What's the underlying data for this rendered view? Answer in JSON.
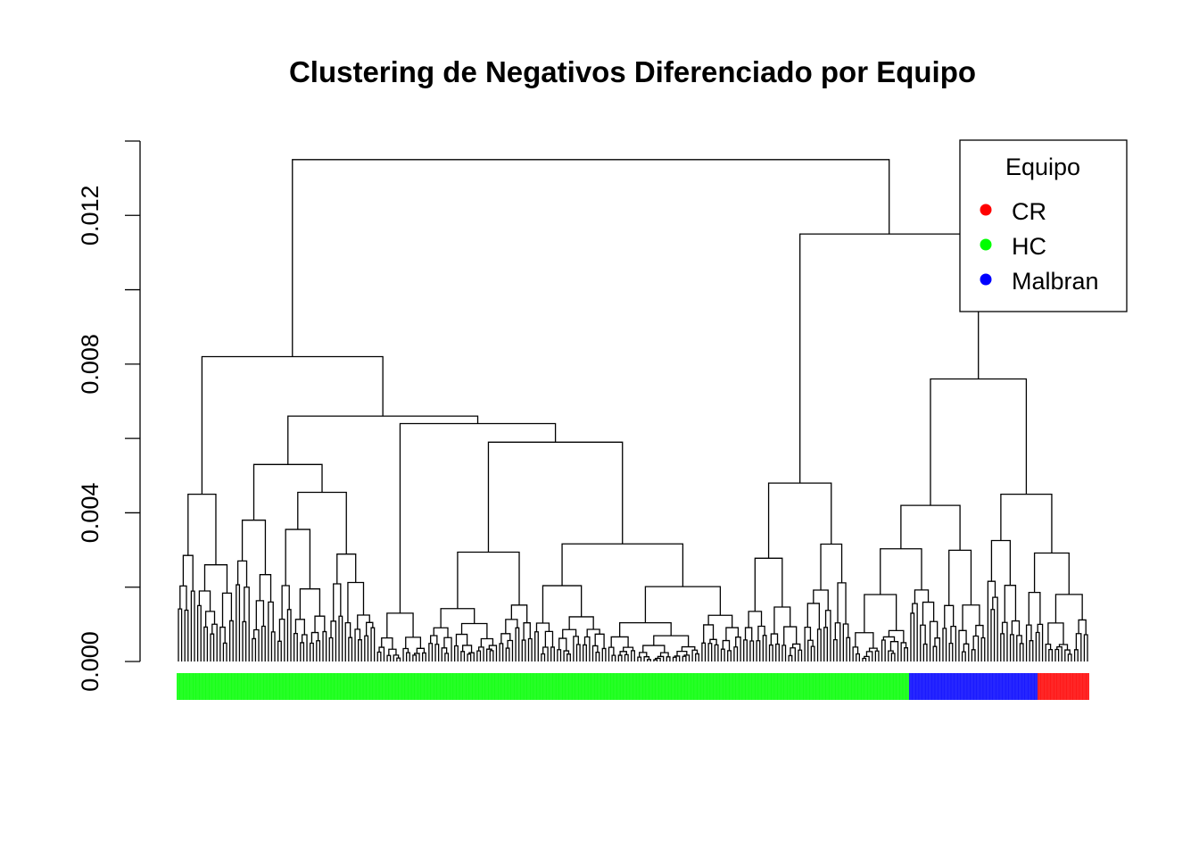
{
  "chart_data": {
    "type": "dendrogram",
    "title": "Clustering de Negativos Diferenciado por Equipo",
    "xlabel": "",
    "ylabel": "",
    "ylim": [
      0,
      0.014
    ],
    "y_ticks": [
      0.0,
      0.002,
      0.004,
      0.006,
      0.008,
      0.01,
      0.012,
      0.014
    ],
    "y_tick_labels": [
      "0.000",
      "0.004",
      "0.008",
      "0.012"
    ],
    "y_tick_label_values": [
      0.0,
      0.004,
      0.008,
      0.012
    ],
    "legend": {
      "title": "Equipo",
      "placement": "top-right",
      "entries": [
        {
          "name": "CR",
          "color": "#ff0000"
        },
        {
          "name": "HC",
          "color": "#00ff00"
        },
        {
          "name": "Malbran",
          "color": "#0000ff"
        }
      ]
    },
    "root_height": 0.0135,
    "groups": [
      {
        "name": "HC",
        "color": "#00ff00",
        "leaf_count": 228
      },
      {
        "name": "Malbran",
        "color": "#0000ff",
        "leaf_count": 40
      },
      {
        "name": "CR",
        "color": "#ff0000",
        "leaf_count": 6
      }
    ],
    "major_merge_heights": [
      0.0135,
      0.0115,
      0.0082,
      0.0076,
      0.0066,
      0.0064,
      0.0059,
      0.0055,
      0.0053,
      0.0048,
      0.0045,
      0.0042
    ]
  }
}
